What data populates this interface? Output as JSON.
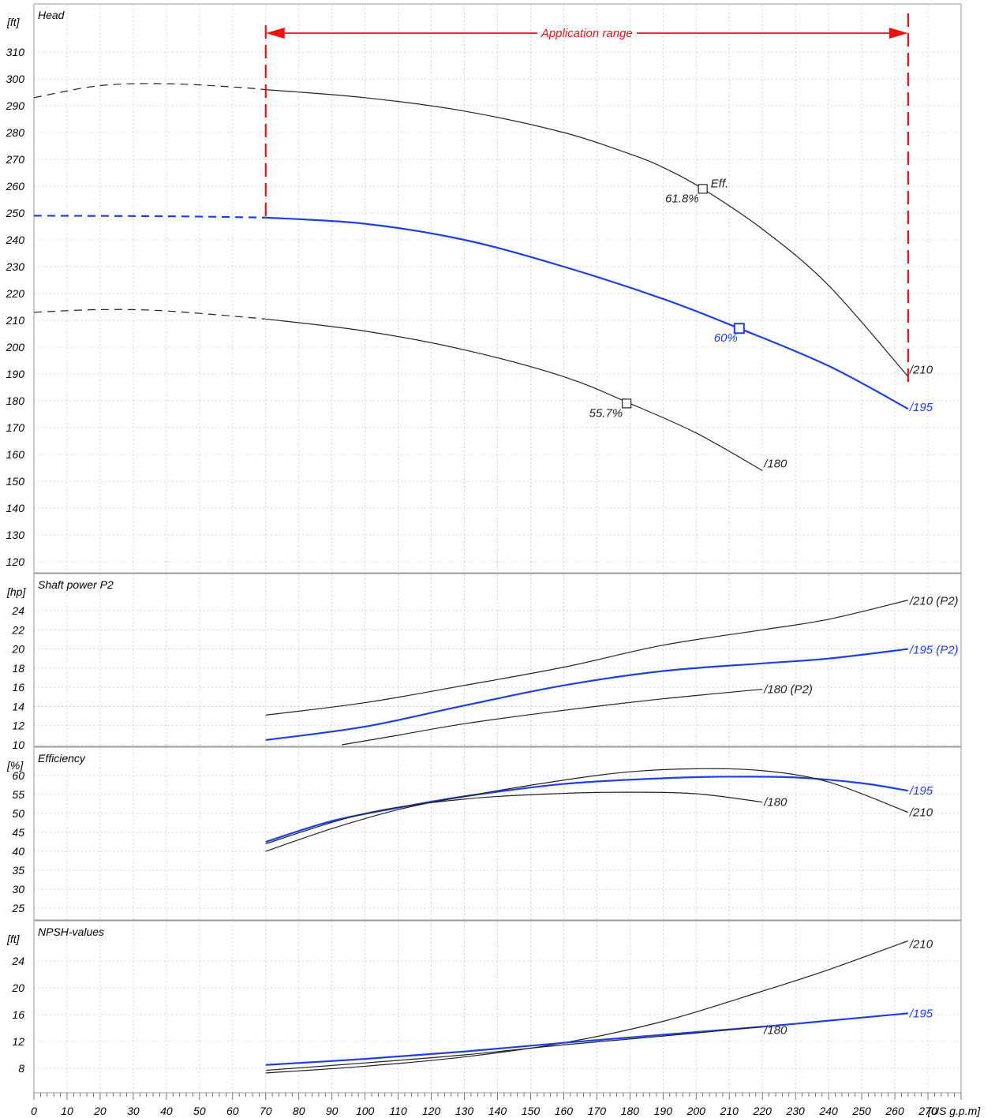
{
  "chart_data": {
    "type": "line",
    "x": {
      "unit": "[US g.p.m]",
      "range": [
        0,
        280
      ],
      "ticks": [
        0,
        10,
        20,
        30,
        40,
        50,
        60,
        70,
        80,
        90,
        100,
        110,
        120,
        130,
        140,
        150,
        160,
        170,
        180,
        190,
        200,
        210,
        220,
        230,
        240,
        250,
        260,
        270
      ],
      "grid": true
    },
    "colors": {
      "blue": "#1f3fe6",
      "black": "#222222",
      "red": "#ee1111"
    },
    "application_range": {
      "label": "Application range",
      "x_start": 70,
      "x_end": 264
    },
    "panels": [
      {
        "id": "head",
        "title": "Head",
        "unit": "[ft]",
        "ylim": [
          115,
          320
        ],
        "ticks": [
          120,
          130,
          140,
          150,
          160,
          170,
          180,
          190,
          200,
          210,
          220,
          230,
          240,
          250,
          260,
          270,
          280,
          290,
          300,
          310
        ],
        "series": [
          {
            "name": "210",
            "label": "/210",
            "color": "black",
            "dashed": [
              [
                0,
                293
              ],
              [
                20,
                297.5
              ],
              [
                40,
                298.2
              ],
              [
                60,
                297
              ],
              [
                70,
                296
              ]
            ],
            "solid": [
              [
                70,
                296
              ],
              [
                100,
                293
              ],
              [
                130,
                288
              ],
              [
                160,
                280
              ],
              [
                180,
                272
              ],
              [
                190,
                267
              ],
              [
                202,
                259
              ],
              [
                220,
                244
              ],
              [
                240,
                223
              ],
              [
                264,
                189
              ]
            ]
          },
          {
            "name": "195",
            "label": "/195",
            "color": "blue",
            "dashed": [
              [
                0,
                249
              ],
              [
                40,
                248.8
              ],
              [
                70,
                248.3
              ]
            ],
            "solid": [
              [
                70,
                248.3
              ],
              [
                100,
                246
              ],
              [
                130,
                240
              ],
              [
                160,
                230
              ],
              [
                190,
                218
              ],
              [
                213,
                207
              ],
              [
                240,
                193
              ],
              [
                264,
                177
              ]
            ]
          },
          {
            "name": "180",
            "label": "/180",
            "color": "black",
            "dashed": [
              [
                0,
                213
              ],
              [
                20,
                214
              ],
              [
                40,
                213.5
              ],
              [
                70,
                210.5
              ]
            ],
            "solid": [
              [
                70,
                210.5
              ],
              [
                100,
                206
              ],
              [
                130,
                199
              ],
              [
                160,
                189
              ],
              [
                180,
                179
              ],
              [
                200,
                168
              ],
              [
                220,
                154
              ]
            ]
          }
        ],
        "markers": [
          {
            "x": 202,
            "y": 259,
            "label": "61.8%",
            "note": "Eff.",
            "color": "black"
          },
          {
            "x": 213,
            "y": 207,
            "label": "60%",
            "color": "blue"
          },
          {
            "x": 179,
            "y": 179,
            "label": "55.7%",
            "color": "black"
          }
        ]
      },
      {
        "id": "power",
        "title": "Shaft power P2",
        "unit": "[hp]",
        "ylim": [
          10,
          26
        ],
        "ticks": [
          10,
          12,
          14,
          16,
          18,
          20,
          22,
          24
        ],
        "series": [
          {
            "name": "210 (P2)",
            "label": "/210 (P2)",
            "color": "black",
            "solid": [
              [
                70,
                13.1
              ],
              [
                100,
                14.4
              ],
              [
                130,
                16.2
              ],
              [
                160,
                18.1
              ],
              [
                190,
                20.4
              ],
              [
                220,
                22.0
              ],
              [
                240,
                23.1
              ],
              [
                264,
                25.1
              ]
            ]
          },
          {
            "name": "195 (P2)",
            "label": "/195 (P2)",
            "color": "blue",
            "solid": [
              [
                70,
                10.5
              ],
              [
                100,
                11.9
              ],
              [
                130,
                14.1
              ],
              [
                160,
                16.2
              ],
              [
                190,
                17.7
              ],
              [
                220,
                18.5
              ],
              [
                240,
                19.0
              ],
              [
                264,
                20.0
              ]
            ]
          },
          {
            "name": "180 (P2)",
            "label": "/180 (P2)",
            "color": "black",
            "solid": [
              [
                93,
                10.0
              ],
              [
                110,
                11.0
              ],
              [
                130,
                12.2
              ],
              [
                160,
                13.6
              ],
              [
                190,
                14.8
              ],
              [
                220,
                15.8
              ]
            ]
          }
        ]
      },
      {
        "id": "efficiency",
        "title": "Efficiency",
        "unit": "[%]",
        "ylim": [
          22,
          64
        ],
        "ticks": [
          25,
          30,
          35,
          40,
          45,
          50,
          55,
          60
        ],
        "series": [
          {
            "name": "195",
            "label": "/195",
            "color": "blue",
            "solid": [
              [
                70,
                42.5
              ],
              [
                90,
                48
              ],
              [
                110,
                51.5
              ],
              [
                130,
                54.5
              ],
              [
                160,
                57.8
              ],
              [
                190,
                59.3
              ],
              [
                210,
                59.7
              ],
              [
                230,
                59.5
              ],
              [
                250,
                58
              ],
              [
                264,
                56
              ]
            ]
          },
          {
            "name": "210",
            "label": "/210",
            "color": "black",
            "solid": [
              [
                70,
                40
              ],
              [
                90,
                46
              ],
              [
                110,
                51
              ],
              [
                130,
                54.5
              ],
              [
                160,
                58.8
              ],
              [
                180,
                61
              ],
              [
                200,
                61.8
              ],
              [
                220,
                61.3
              ],
              [
                240,
                58.3
              ],
              [
                264,
                50.3
              ]
            ]
          },
          {
            "name": "180",
            "label": "/180",
            "color": "black",
            "solid": [
              [
                70,
                42
              ],
              [
                100,
                50
              ],
              [
                130,
                53.8
              ],
              [
                160,
                55.3
              ],
              [
                180,
                55.6
              ],
              [
                200,
                55.2
              ],
              [
                220,
                53
              ]
            ]
          }
        ]
      },
      {
        "id": "npsh",
        "title": "NPSH-values",
        "unit": "[ft]",
        "ylim": [
          5,
          28
        ],
        "ticks": [
          8,
          12,
          16,
          20,
          24
        ],
        "series": [
          {
            "name": "210",
            "label": "/210",
            "color": "black",
            "solid": [
              [
                70,
                7.3
              ],
              [
                100,
                8.3
              ],
              [
                130,
                9.7
              ],
              [
                160,
                11.8
              ],
              [
                190,
                15
              ],
              [
                220,
                19.5
              ],
              [
                240,
                22.7
              ],
              [
                264,
                27
              ]
            ]
          },
          {
            "name": "195",
            "label": "/195",
            "color": "blue",
            "solid": [
              [
                70,
                8.5
              ],
              [
                100,
                9.4
              ],
              [
                130,
                10.5
              ],
              [
                160,
                11.8
              ],
              [
                190,
                13
              ],
              [
                220,
                14.2
              ],
              [
                240,
                15.1
              ],
              [
                264,
                16.2
              ]
            ]
          },
          {
            "name": "180",
            "label": "/180",
            "color": "black",
            "solid": [
              [
                70,
                7.7
              ],
              [
                100,
                8.8
              ],
              [
                130,
                10
              ],
              [
                160,
                11.5
              ],
              [
                190,
                12.8
              ],
              [
                220,
                14.2
              ]
            ]
          }
        ]
      }
    ]
  }
}
